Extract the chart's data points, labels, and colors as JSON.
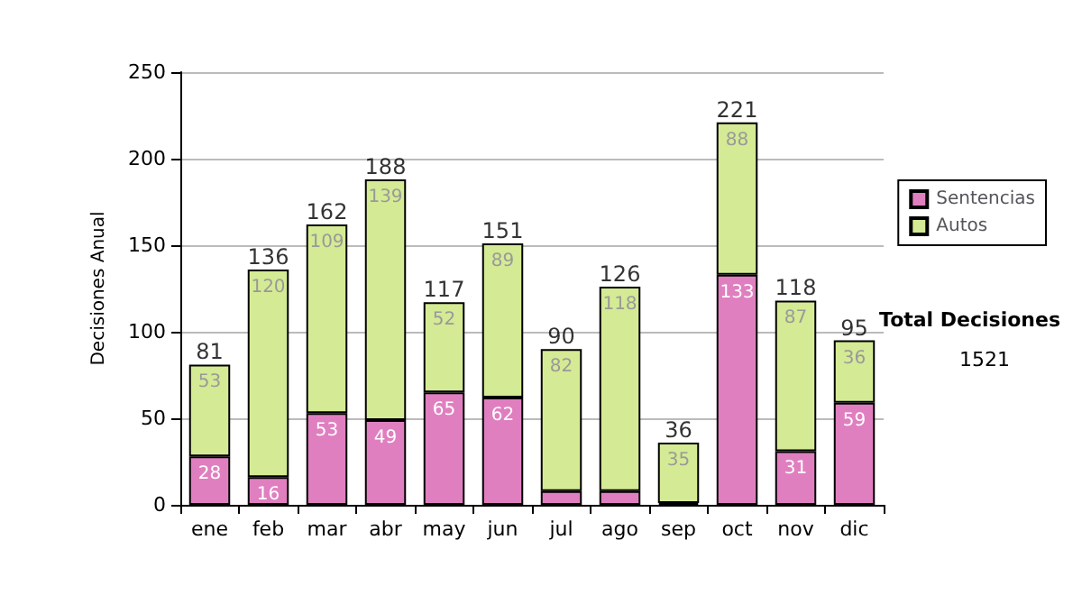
{
  "chart_data": {
    "type": "bar",
    "stacked": true,
    "ylabel": "Decisiones Anual",
    "categories": [
      "ene",
      "feb",
      "mar",
      "abr",
      "may",
      "jun",
      "jul",
      "ago",
      "sep",
      "oct",
      "nov",
      "dic"
    ],
    "series": [
      {
        "name": "Sentencias",
        "color": "#e07fc0",
        "values": [
          28,
          16,
          53,
          49,
          65,
          62,
          8,
          8,
          1,
          133,
          31,
          59
        ],
        "value_labels": [
          "28",
          "16",
          "53",
          "49",
          "65",
          "62",
          null,
          null,
          null,
          "133",
          "31",
          "59"
        ]
      },
      {
        "name": "Autos",
        "color": "#d4ea94",
        "values": [
          53,
          120,
          109,
          139,
          52,
          89,
          82,
          118,
          35,
          88,
          87,
          36
        ],
        "value_labels": [
          "53",
          "120",
          "109",
          "139",
          "52",
          "89",
          "82",
          "118",
          "35",
          "88",
          "87",
          "36"
        ]
      }
    ],
    "totals": [
      "81",
      "136",
      "162",
      "188",
      "117",
      "151",
      "90",
      "126",
      "36",
      "221",
      "118",
      "95"
    ],
    "ylim": [
      0,
      250
    ],
    "yticks": [
      0,
      50,
      100,
      150,
      200,
      250
    ],
    "grid": "y",
    "legend": "right",
    "annotations": [
      "Total Decisiones",
      "1521"
    ]
  }
}
